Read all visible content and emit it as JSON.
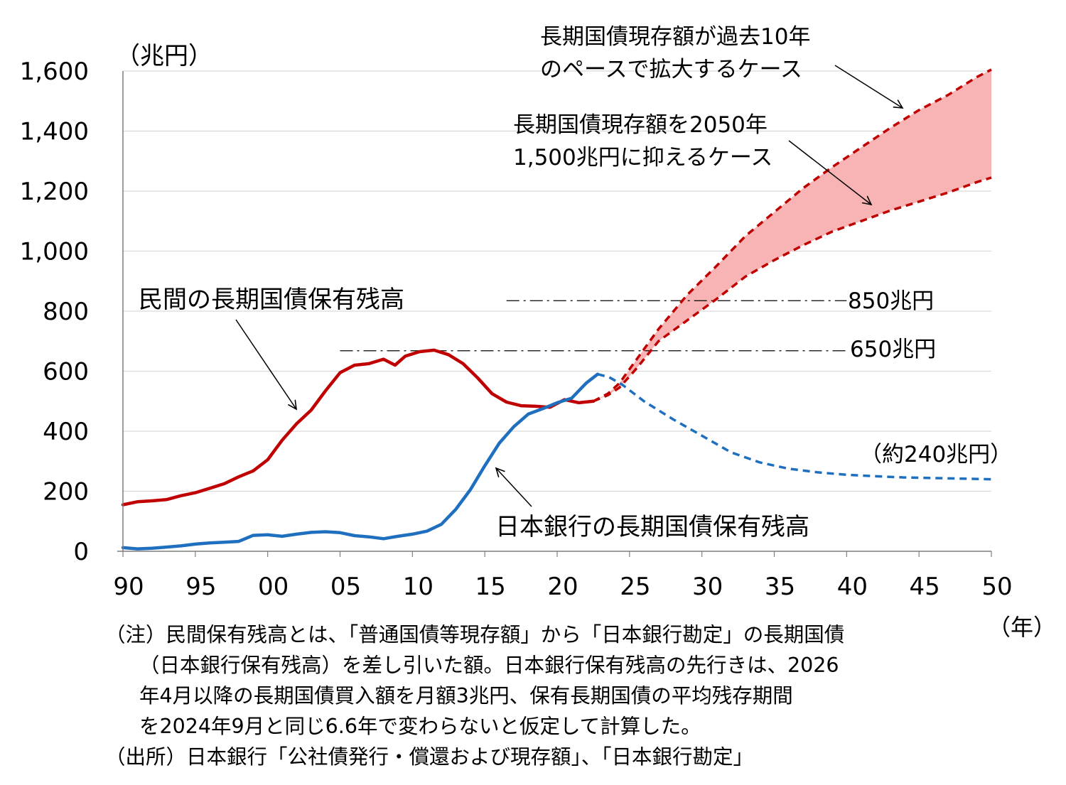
{
  "chart_data": {
    "type": "line",
    "ylabel": "（兆円）",
    "xlabel": "（年）",
    "ylim": [
      0,
      1600
    ],
    "xlim": [
      1990,
      2050
    ],
    "yticks": [
      "0",
      "200",
      "400",
      "600",
      "800",
      "1,000",
      "1,200",
      "1,400",
      "1,600"
    ],
    "xticks": [
      "90",
      "95",
      "00",
      "05",
      "10",
      "15",
      "20",
      "25",
      "30",
      "35",
      "40",
      "45",
      "50"
    ],
    "grid": true,
    "series": [
      {
        "name": "民間の長期国債保有残高",
        "color": "#C00000",
        "style": "solid",
        "points": [
          [
            1990,
            155
          ],
          [
            1991,
            165
          ],
          [
            1992,
            168
          ],
          [
            1993,
            172
          ],
          [
            1994,
            185
          ],
          [
            1995,
            195
          ],
          [
            1996,
            210
          ],
          [
            1997,
            225
          ],
          [
            1998,
            248
          ],
          [
            1999,
            268
          ],
          [
            2000,
            305
          ],
          [
            2001,
            370
          ],
          [
            2002,
            425
          ],
          [
            2003,
            470
          ],
          [
            2004,
            535
          ],
          [
            2005,
            595
          ],
          [
            2006,
            620
          ],
          [
            2007,
            625
          ],
          [
            2008,
            640
          ],
          [
            2008.8,
            620
          ],
          [
            2009.5,
            650
          ],
          [
            2010.5,
            665
          ],
          [
            2011.5,
            670
          ],
          [
            2012.5,
            655
          ],
          [
            2013.5,
            625
          ],
          [
            2014.5,
            578
          ],
          [
            2015.5,
            525
          ],
          [
            2016.5,
            497
          ],
          [
            2017.5,
            485
          ],
          [
            2018.5,
            483
          ],
          [
            2019.5,
            480
          ],
          [
            2020.5,
            505
          ],
          [
            2021.5,
            495
          ],
          [
            2022.5,
            500
          ]
        ]
      },
      {
        "name": "日本銀行の長期国債保有残高",
        "color": "#1F6FBF",
        "style": "solid",
        "points": [
          [
            1990,
            12
          ],
          [
            1991,
            8
          ],
          [
            1992,
            10
          ],
          [
            1993,
            14
          ],
          [
            1994,
            18
          ],
          [
            1995,
            24
          ],
          [
            1996,
            28
          ],
          [
            1997,
            30
          ],
          [
            1998,
            33
          ],
          [
            1999,
            53
          ],
          [
            2000,
            55
          ],
          [
            2001,
            50
          ],
          [
            2002,
            57
          ],
          [
            2003,
            63
          ],
          [
            2004,
            65
          ],
          [
            2005,
            62
          ],
          [
            2006,
            52
          ],
          [
            2007,
            48
          ],
          [
            2008,
            42
          ],
          [
            2009,
            50
          ],
          [
            2010,
            57
          ],
          [
            2011,
            67
          ],
          [
            2012,
            90
          ],
          [
            2013,
            140
          ],
          [
            2014,
            205
          ],
          [
            2015,
            285
          ],
          [
            2016,
            360
          ],
          [
            2017,
            415
          ],
          [
            2018,
            457
          ],
          [
            2019,
            475
          ],
          [
            2020,
            495
          ],
          [
            2021,
            510
          ],
          [
            2022,
            560
          ],
          [
            2022.8,
            590
          ]
        ]
      },
      {
        "name": "日本銀行の長期国債保有残高（先行き）",
        "color": "#1F6FBF",
        "style": "dashed",
        "points": [
          [
            2022.8,
            590
          ],
          [
            2023.6,
            580
          ],
          [
            2024.5,
            555
          ],
          [
            2026,
            500
          ],
          [
            2028,
            440
          ],
          [
            2030,
            385
          ],
          [
            2032,
            330
          ],
          [
            2034,
            296
          ],
          [
            2036,
            275
          ],
          [
            2038,
            263
          ],
          [
            2040,
            255
          ],
          [
            2042,
            250
          ],
          [
            2044,
            246
          ],
          [
            2046,
            244
          ],
          [
            2048,
            242
          ],
          [
            2050,
            240
          ]
        ]
      },
      {
        "name": "長期国債現存額が過去10年のペースで拡大するケース",
        "color": "#C00000",
        "style": "dashed",
        "points": [
          [
            2022.5,
            500
          ],
          [
            2023.5,
            525
          ],
          [
            2024.3,
            560
          ],
          [
            2025.5,
            640
          ],
          [
            2027,
            740
          ],
          [
            2029,
            855
          ],
          [
            2031,
            950
          ],
          [
            2033,
            1050
          ],
          [
            2035,
            1130
          ],
          [
            2037,
            1210
          ],
          [
            2039,
            1280
          ],
          [
            2041,
            1345
          ],
          [
            2043,
            1410
          ],
          [
            2045,
            1470
          ],
          [
            2047,
            1520
          ],
          [
            2049,
            1580
          ],
          [
            2050,
            1605
          ]
        ]
      },
      {
        "name": "長期国債現存額を2050年1,500兆円に抑えるケース",
        "color": "#C00000",
        "style": "dashed",
        "points": [
          [
            2022.5,
            500
          ],
          [
            2023.5,
            520
          ],
          [
            2024.3,
            545
          ],
          [
            2025.5,
            610
          ],
          [
            2027,
            700
          ],
          [
            2029,
            770
          ],
          [
            2031,
            840
          ],
          [
            2033,
            915
          ],
          [
            2035,
            970
          ],
          [
            2037,
            1020
          ],
          [
            2039,
            1065
          ],
          [
            2041,
            1100
          ],
          [
            2043,
            1135
          ],
          [
            2045,
            1165
          ],
          [
            2047,
            1195
          ],
          [
            2049,
            1230
          ],
          [
            2050,
            1245
          ]
        ]
      }
    ],
    "reference_lines": [
      {
        "label": "850兆円",
        "y": 835,
        "x_start": 2016.5,
        "x_end": 2040
      },
      {
        "label": "650兆円",
        "y": 668,
        "x_start": 2005,
        "x_end": 2040
      }
    ],
    "annotations": {
      "private": "民間の長期国債保有残高",
      "boj": "日本銀行の長期国債保有残高",
      "boj_end": "（約240兆円）",
      "case_upper_line1": "長期国債現存額が過去10年",
      "case_upper_line2": "のペースで拡大するケース",
      "case_lower_line1": "長期国債現存額を2050年",
      "case_lower_line2": "1,500兆円に抑えるケース"
    },
    "fill_color": "#F8B4B4"
  },
  "notes": {
    "line1": "（注）民間保有残高とは、「普通国債等現存額」から「日本銀行勘定」の長期国債",
    "line2": "（日本銀行保有残高）を差し引いた額。日本銀行保有残高の先行きは、2026",
    "line3": "年4月以降の長期国債買入額を月額3兆円、保有長期国債の平均残存期間",
    "line4": "を2024年9月と同じ6.6年で変わらないと仮定して計算した。",
    "source": "（出所）日本銀行「公社債発行・償還および現存額」、「日本銀行勘定」"
  }
}
